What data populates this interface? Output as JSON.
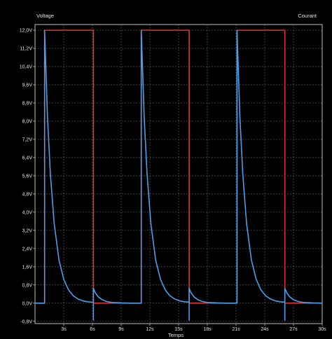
{
  "chart_data": {
    "type": "line",
    "title": "",
    "left_axis_label": "Voltage",
    "right_axis_label": "Courant",
    "xlabel": "Temps",
    "xlim": [
      0,
      30
    ],
    "ylim": [
      -0.9,
      12.25
    ],
    "grid": true,
    "grid_style": "dotted",
    "background": "#000000",
    "axis_color": "#bfbfbf",
    "grid_color": "#6a6a6a",
    "text_color": "#e6e6e6",
    "x_ticks": [
      3,
      6,
      9,
      12,
      15,
      18,
      21,
      24,
      27,
      30
    ],
    "x_tick_labels": [
      "3s",
      "6s",
      "9s",
      "12s",
      "15s",
      "18s",
      "21s",
      "24s",
      "27s",
      "30s"
    ],
    "y_ticks": [
      -0.8,
      0,
      0.8,
      1.6,
      2.4,
      3.2,
      4.0,
      4.8,
      5.6,
      6.4,
      7.2,
      8.0,
      8.8,
      9.6,
      10.4,
      11.2,
      12.0
    ],
    "y_tick_labels": [
      "-0,8V",
      "0,0V",
      "0,8V",
      "1,6V",
      "2,4V",
      "3,2V",
      "4,0V",
      "4,8V",
      "5,6V",
      "6,4V",
      "7,2V",
      "8,0V",
      "8,8V",
      "9,6V",
      "10,4V",
      "11,2V",
      "12,0V"
    ],
    "series": [
      {
        "color": "#e03030",
        "x": [
          0,
          1,
          1,
          6.1,
          6.1,
          11.1,
          11.1,
          16.1,
          16.1,
          21.1,
          21.1,
          26.1,
          26.1,
          30
        ],
        "y": [
          0,
          0,
          12,
          12,
          0,
          0,
          12,
          12,
          0,
          0,
          12,
          12,
          0,
          0
        ]
      },
      {
        "color": "#4a9eea",
        "x": [
          0,
          1,
          1,
          1.3,
          1.6,
          2.0,
          2.5,
          3.0,
          3.5,
          4.0,
          4.5,
          5.0,
          5.5,
          6.0,
          6.1,
          6.1,
          6.1,
          6.3,
          6.6,
          7.0,
          7.5,
          8.0,
          9.0,
          10.0,
          11.1,
          11.1,
          11.4,
          11.7,
          12.1,
          12.6,
          13.1,
          13.6,
          14.1,
          14.6,
          15.1,
          15.6,
          16.1,
          16.1,
          16.1,
          16.3,
          16.6,
          17.0,
          17.5,
          18.0,
          19.0,
          20.0,
          21.1,
          21.1,
          21.4,
          21.7,
          22.1,
          22.6,
          23.1,
          23.6,
          24.1,
          24.6,
          25.1,
          25.6,
          26.1,
          26.1,
          26.1,
          26.3,
          26.6,
          27.0,
          27.5,
          28.0,
          29.0,
          30.0
        ],
        "y": [
          0,
          0,
          12,
          8.2,
          5.7,
          3.5,
          1.9,
          1.05,
          0.58,
          0.32,
          0.18,
          0.1,
          0.06,
          0.04,
          0.04,
          -0.75,
          0.65,
          0.45,
          0.28,
          0.15,
          0.07,
          0.03,
          0.01,
          0,
          0,
          12,
          8.2,
          5.7,
          3.5,
          1.9,
          1.05,
          0.58,
          0.32,
          0.18,
          0.1,
          0.06,
          0.04,
          -0.75,
          0.65,
          0.45,
          0.28,
          0.15,
          0.07,
          0.03,
          0.01,
          0,
          0,
          12,
          8.2,
          5.7,
          3.5,
          1.9,
          1.05,
          0.58,
          0.32,
          0.18,
          0.1,
          0.06,
          0.04,
          -0.75,
          0.65,
          0.45,
          0.28,
          0.15,
          0.07,
          0.03,
          0.01,
          0
        ]
      }
    ]
  }
}
